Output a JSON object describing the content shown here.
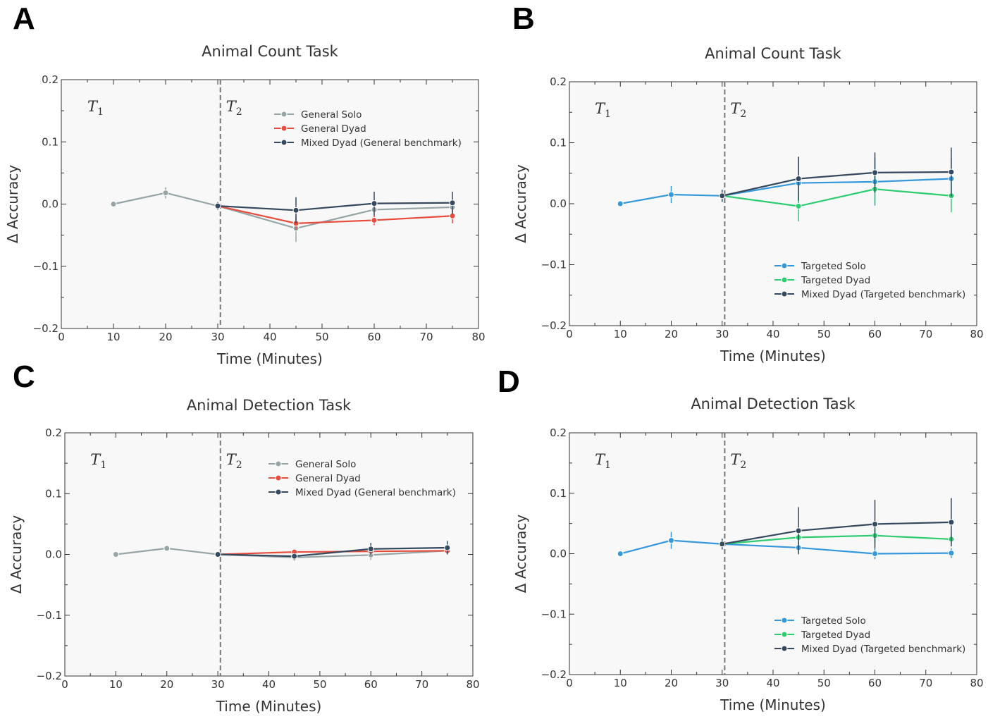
{
  "chart_data": [
    {
      "panel": "A",
      "type": "line",
      "title": "Animal Count Task",
      "xlabel": "Time (Minutes)",
      "ylabel": "Δ Accuracy",
      "xlim": [
        0,
        80
      ],
      "ylim": [
        -0.2,
        0.2
      ],
      "xticks": [
        0,
        10,
        20,
        30,
        40,
        50,
        60,
        70,
        80
      ],
      "yticks": [
        -0.2,
        -0.1,
        0.0,
        0.1,
        0.2
      ],
      "ytick_labels": [
        "−0.2",
        "−0.1",
        "0.0",
        "0.1",
        "0.2"
      ],
      "divider_x": 30.5,
      "phase_labels": [
        "T1",
        "T2"
      ],
      "legend_position": "upper-right",
      "series": [
        {
          "name": "General Solo",
          "color": "#95a5a6",
          "x": [
            10,
            20,
            30,
            45,
            60,
            75
          ],
          "y": [
            0.0,
            0.018,
            -0.003,
            -0.039,
            -0.009,
            -0.005
          ],
          "err": [
            0,
            0.009,
            0.006,
            0.022,
            0.012,
            0.009
          ]
        },
        {
          "name": "General Dyad",
          "color": "#e74c3c",
          "x": [
            30,
            45,
            60,
            75
          ],
          "y": [
            -0.003,
            -0.031,
            -0.026,
            -0.019
          ],
          "err": [
            0.006,
            0.01,
            0.008,
            0.012
          ]
        },
        {
          "name": "Mixed Dyad (General benchmark)",
          "color": "#34495e",
          "x": [
            30,
            45,
            60,
            75
          ],
          "y": [
            -0.003,
            -0.01,
            0.001,
            0.002
          ],
          "err": [
            0.006,
            0.021,
            0.019,
            0.018
          ]
        }
      ]
    },
    {
      "panel": "B",
      "type": "line",
      "title": "Animal Count Task",
      "xlabel": "Time (Minutes)",
      "ylabel": "Δ Accuracy",
      "xlim": [
        0,
        80
      ],
      "ylim": [
        -0.2,
        0.2
      ],
      "xticks": [
        0,
        10,
        20,
        30,
        40,
        50,
        60,
        70,
        80
      ],
      "yticks": [
        -0.2,
        -0.1,
        0.0,
        0.1,
        0.2
      ],
      "ytick_labels": [
        "−0.2",
        "−0.1",
        "0.0",
        "0.1",
        "0.2"
      ],
      "divider_x": 30.5,
      "phase_labels": [
        "T1",
        "T2"
      ],
      "legend_position": "lower-right",
      "series": [
        {
          "name": "Targeted Solo",
          "color": "#3498db",
          "x": [
            10,
            20,
            30,
            45,
            60,
            75
          ],
          "y": [
            0.0,
            0.015,
            0.013,
            0.034,
            0.036,
            0.041
          ],
          "err": [
            0,
            0.014,
            0.01,
            0.043,
            0.039,
            0.035
          ]
        },
        {
          "name": "Targeted Dyad",
          "color": "#2ecc71",
          "x": [
            30,
            45,
            60,
            75
          ],
          "y": [
            0.013,
            -0.004,
            0.024,
            0.013
          ],
          "err": [
            0.01,
            0.025,
            0.024,
            0.027
          ]
        },
        {
          "name": "Mixed Dyad (Targeted benchmark)",
          "color": "#34495e",
          "x": [
            30,
            45,
            60,
            75
          ],
          "y": [
            0.013,
            0.041,
            0.051,
            0.052
          ],
          "err": [
            0.01,
            0.036,
            0.033,
            0.04
          ]
        }
      ]
    },
    {
      "panel": "C",
      "type": "line",
      "title": "Animal Detection Task",
      "xlabel": "Time (Minutes)",
      "ylabel": "Δ Accuracy",
      "xlim": [
        0,
        80
      ],
      "ylim": [
        -0.2,
        0.2
      ],
      "xticks": [
        0,
        10,
        20,
        30,
        40,
        50,
        60,
        70,
        80
      ],
      "yticks": [
        -0.2,
        -0.1,
        0.0,
        0.1,
        0.2
      ],
      "ytick_labels": [
        "−0.2",
        "−0.1",
        "0.0",
        "0.1",
        "0.2"
      ],
      "divider_x": 30.5,
      "phase_labels": [
        "T1",
        "T2"
      ],
      "legend_position": "upper-right",
      "series": [
        {
          "name": "General Solo",
          "color": "#95a5a6",
          "x": [
            10,
            20,
            30,
            45,
            60,
            75
          ],
          "y": [
            0.0,
            0.01,
            0.0,
            -0.005,
            -0.001,
            0.006
          ],
          "err": [
            0,
            0.003,
            0.003,
            0.006,
            0.008,
            0.006
          ]
        },
        {
          "name": "General Dyad",
          "color": "#e74c3c",
          "x": [
            30,
            45,
            60,
            75
          ],
          "y": [
            0.0,
            0.004,
            0.005,
            0.006
          ],
          "err": [
            0.003,
            0.005,
            0.006,
            0.006
          ]
        },
        {
          "name": "Mixed Dyad (General benchmark)",
          "color": "#34495e",
          "x": [
            30,
            45,
            60,
            75
          ],
          "y": [
            0.0,
            -0.003,
            0.009,
            0.011
          ],
          "err": [
            0.003,
            0.006,
            0.01,
            0.011
          ]
        }
      ]
    },
    {
      "panel": "D",
      "type": "line",
      "title": "Animal Detection Task",
      "xlabel": "Time (Minutes)",
      "ylabel": "Δ Accuracy",
      "xlim": [
        0,
        80
      ],
      "ylim": [
        -0.2,
        0.2
      ],
      "xticks": [
        0,
        10,
        20,
        30,
        40,
        50,
        60,
        70,
        80
      ],
      "yticks": [
        -0.2,
        -0.1,
        0.0,
        0.1,
        0.2
      ],
      "ytick_labels": [
        "−0.2",
        "−0.1",
        "0.0",
        "0.1",
        "0.2"
      ],
      "divider_x": 30.5,
      "phase_labels": [
        "T1",
        "T2"
      ],
      "legend_position": "lower-right",
      "series": [
        {
          "name": "Targeted Solo",
          "color": "#3498db",
          "x": [
            10,
            20,
            30,
            45,
            60,
            75
          ],
          "y": [
            0.0,
            0.022,
            0.016,
            0.01,
            0.0,
            0.001
          ],
          "err": [
            0,
            0.014,
            0.009,
            0.008,
            0.009,
            0.008
          ]
        },
        {
          "name": "Targeted Dyad",
          "color": "#2ecc71",
          "x": [
            30,
            45,
            60,
            75
          ],
          "y": [
            0.016,
            0.027,
            0.03,
            0.024
          ],
          "err": [
            0.009,
            0.012,
            0.012,
            0.01
          ]
        },
        {
          "name": "Mixed Dyad (Targeted benchmark)",
          "color": "#34495e",
          "x": [
            30,
            45,
            60,
            75
          ],
          "y": [
            0.016,
            0.038,
            0.049,
            0.052
          ],
          "err": [
            0.009,
            0.039,
            0.04,
            0.04
          ]
        }
      ]
    }
  ]
}
